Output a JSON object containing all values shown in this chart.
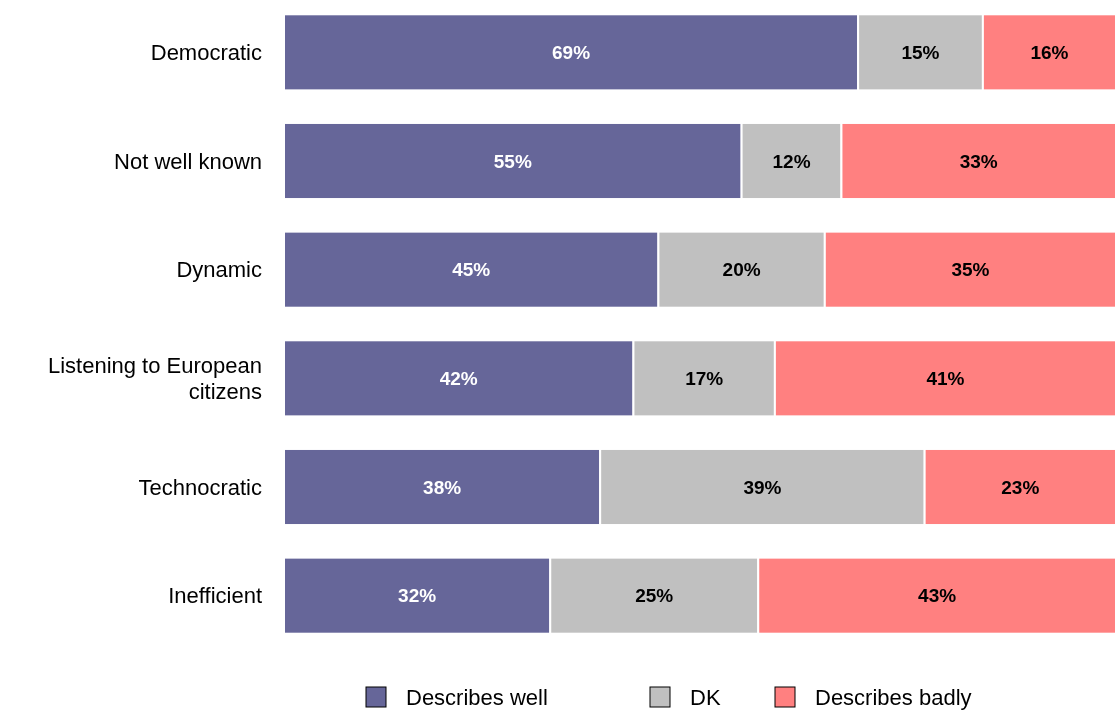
{
  "chart_data": {
    "type": "bar",
    "orientation": "horizontal",
    "stacked": true,
    "legend": "bottom",
    "categories": [
      "Democratic",
      "Not well known",
      "Dynamic",
      "Listening to European citizens",
      "Technocratic",
      "Inefficient"
    ],
    "series": [
      {
        "name": "Describes well",
        "color": "#666699",
        "values": [
          69,
          55,
          45,
          42,
          38,
          32
        ],
        "value_labels": [
          "69%",
          "55%",
          "45%",
          "42%",
          "38%",
          "32%"
        ]
      },
      {
        "name": "DK",
        "color": "#c0c0c0",
        "values": [
          15,
          12,
          20,
          17,
          39,
          25
        ],
        "value_labels": [
          "15%",
          "12%",
          "20%",
          "17%",
          "39%",
          "25%"
        ]
      },
      {
        "name": "Describes badly",
        "color": "#ff8080",
        "values": [
          16,
          33,
          35,
          41,
          23,
          43
        ],
        "value_labels": [
          "16%",
          "33%",
          "35%",
          "41%",
          "23%",
          "43%"
        ]
      }
    ]
  }
}
